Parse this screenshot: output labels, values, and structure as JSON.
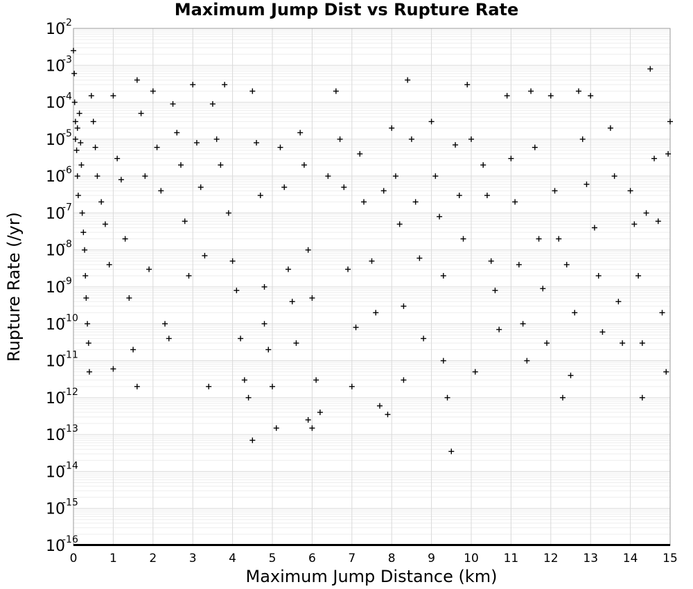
{
  "chart_data": {
    "type": "scatter",
    "title": "Maximum Jump Dist vs Rupture Rate",
    "xlabel": "Maximum Jump Distance (km)",
    "ylabel": "Rupture Rate (/yr)",
    "xlim": [
      0,
      15
    ],
    "ylim": [
      1e-16,
      0.01
    ],
    "y_scale": "log",
    "grid": true,
    "marker": "+",
    "marker_color": "#000000",
    "x_ticks": [
      "0",
      "1",
      "2",
      "3",
      "4",
      "5",
      "6",
      "7",
      "8",
      "9",
      "10",
      "11",
      "12",
      "13",
      "14",
      "15"
    ],
    "y_ticks": [
      {
        "base": "10",
        "exp": "-2"
      },
      {
        "base": "10",
        "exp": "-3"
      },
      {
        "base": "10",
        "exp": "-4"
      },
      {
        "base": "10",
        "exp": "-5"
      },
      {
        "base": "10",
        "exp": "-6"
      },
      {
        "base": "10",
        "exp": "-7"
      },
      {
        "base": "10",
        "exp": "-8"
      },
      {
        "base": "10",
        "exp": "-9"
      },
      {
        "base": "10",
        "exp": "-10"
      },
      {
        "base": "10",
        "exp": "-11"
      },
      {
        "base": "10",
        "exp": "-12"
      },
      {
        "base": "10",
        "exp": "-13"
      },
      {
        "base": "10",
        "exp": "-14"
      },
      {
        "base": "10",
        "exp": "-15"
      },
      {
        "base": "10",
        "exp": "-16"
      }
    ],
    "series": [
      {
        "points": [
          [
            0.0,
            0.0025
          ],
          [
            0.02,
            0.0006
          ],
          [
            0.03,
            0.0001
          ],
          [
            0.05,
            3e-05
          ],
          [
            0.05,
            1e-05
          ],
          [
            0.08,
            5e-06
          ],
          [
            0.1,
            2e-05
          ],
          [
            0.1,
            1e-06
          ],
          [
            0.12,
            3e-07
          ],
          [
            0.15,
            5e-05
          ],
          [
            0.18,
            8e-06
          ],
          [
            0.2,
            2e-06
          ],
          [
            0.22,
            1e-07
          ],
          [
            0.25,
            3e-08
          ],
          [
            0.28,
            1e-08
          ],
          [
            0.3,
            2e-09
          ],
          [
            0.32,
            5e-10
          ],
          [
            0.35,
            1e-10
          ],
          [
            0.38,
            3e-11
          ],
          [
            0.4,
            5e-12
          ],
          [
            0.45,
            0.00015
          ],
          [
            0.5,
            3e-05
          ],
          [
            0.55,
            6e-06
          ],
          [
            0.6,
            1e-06
          ],
          [
            0.7,
            2e-07
          ],
          [
            0.8,
            5e-08
          ],
          [
            0.9,
            4e-09
          ],
          [
            1.0,
            0.00015
          ],
          [
            1.0,
            6e-12
          ],
          [
            1.1,
            3e-06
          ],
          [
            1.2,
            8e-07
          ],
          [
            1.3,
            2e-08
          ],
          [
            1.4,
            5e-10
          ],
          [
            1.5,
            2e-11
          ],
          [
            1.6,
            0.0004
          ],
          [
            1.6,
            2e-12
          ],
          [
            1.7,
            5e-05
          ],
          [
            1.8,
            1e-06
          ],
          [
            1.9,
            3e-09
          ],
          [
            2.0,
            0.0002
          ],
          [
            2.1,
            6e-06
          ],
          [
            2.2,
            4e-07
          ],
          [
            2.3,
            1e-10
          ],
          [
            2.4,
            4e-11
          ],
          [
            2.5,
            9e-05
          ],
          [
            2.6,
            1.5e-05
          ],
          [
            2.7,
            2e-06
          ],
          [
            2.8,
            6e-08
          ],
          [
            2.9,
            2e-09
          ],
          [
            3.0,
            0.0003
          ],
          [
            3.1,
            8e-06
          ],
          [
            3.2,
            5e-07
          ],
          [
            3.3,
            7e-09
          ],
          [
            3.4,
            2e-12
          ],
          [
            3.5,
            9e-05
          ],
          [
            3.6,
            1e-05
          ],
          [
            3.7,
            2e-06
          ],
          [
            3.8,
            0.0003
          ],
          [
            3.9,
            1e-07
          ],
          [
            4.0,
            5e-09
          ],
          [
            4.1,
            8e-10
          ],
          [
            4.2,
            4e-11
          ],
          [
            4.3,
            3e-12
          ],
          [
            4.4,
            1e-12
          ],
          [
            4.5,
            7e-14
          ],
          [
            4.5,
            0.0002
          ],
          [
            4.6,
            8e-06
          ],
          [
            4.7,
            3e-07
          ],
          [
            4.8,
            1e-09
          ],
          [
            4.8,
            1e-10
          ],
          [
            4.9,
            2e-11
          ],
          [
            5.0,
            2e-12
          ],
          [
            5.1,
            1.5e-13
          ],
          [
            5.2,
            6e-06
          ],
          [
            5.3,
            5e-07
          ],
          [
            5.4,
            3e-09
          ],
          [
            5.5,
            4e-10
          ],
          [
            5.6,
            3e-11
          ],
          [
            5.7,
            1.5e-05
          ],
          [
            5.8,
            2e-06
          ],
          [
            5.9,
            1e-08
          ],
          [
            5.9,
            2.5e-13
          ],
          [
            6.0,
            5e-10
          ],
          [
            6.0,
            1.5e-13
          ],
          [
            6.1,
            3e-12
          ],
          [
            6.2,
            4e-13
          ],
          [
            6.4,
            1e-06
          ],
          [
            6.6,
            0.0002
          ],
          [
            6.7,
            1e-05
          ],
          [
            6.8,
            5e-07
          ],
          [
            6.9,
            3e-09
          ],
          [
            7.0,
            2e-12
          ],
          [
            7.1,
            8e-11
          ],
          [
            7.2,
            4e-06
          ],
          [
            7.3,
            2e-07
          ],
          [
            7.5,
            5e-09
          ],
          [
            7.6,
            2e-10
          ],
          [
            7.7,
            6e-13
          ],
          [
            7.8,
            4e-07
          ],
          [
            7.9,
            3.5e-13
          ],
          [
            8.0,
            2e-05
          ],
          [
            8.1,
            1e-06
          ],
          [
            8.2,
            5e-08
          ],
          [
            8.3,
            3e-10
          ],
          [
            8.3,
            3e-12
          ],
          [
            8.4,
            0.0004
          ],
          [
            8.5,
            1e-05
          ],
          [
            8.6,
            2e-07
          ],
          [
            8.7,
            6e-09
          ],
          [
            8.8,
            4e-11
          ],
          [
            9.0,
            3e-05
          ],
          [
            9.1,
            1e-06
          ],
          [
            9.2,
            8e-08
          ],
          [
            9.3,
            2e-09
          ],
          [
            9.3,
            1e-11
          ],
          [
            9.4,
            1e-12
          ],
          [
            9.5,
            3.5e-14
          ],
          [
            9.6,
            7e-06
          ],
          [
            9.7,
            3e-07
          ],
          [
            9.8,
            2e-08
          ],
          [
            9.9,
            0.0003
          ],
          [
            10.0,
            1e-05
          ],
          [
            10.1,
            5e-12
          ],
          [
            10.3,
            2e-06
          ],
          [
            10.4,
            3e-07
          ],
          [
            10.5,
            5e-09
          ],
          [
            10.6,
            8e-10
          ],
          [
            10.7,
            7e-11
          ],
          [
            10.9,
            0.00015
          ],
          [
            11.0,
            3e-06
          ],
          [
            11.1,
            2e-07
          ],
          [
            11.2,
            4e-09
          ],
          [
            11.3,
            1e-10
          ],
          [
            11.4,
            1e-11
          ],
          [
            11.5,
            0.0002
          ],
          [
            11.6,
            6e-06
          ],
          [
            11.7,
            2e-08
          ],
          [
            11.8,
            9e-10
          ],
          [
            11.9,
            3e-11
          ],
          [
            12.0,
            0.00015
          ],
          [
            12.1,
            4e-07
          ],
          [
            12.2,
            2e-08
          ],
          [
            12.3,
            1e-12
          ],
          [
            12.4,
            4e-09
          ],
          [
            12.5,
            4e-12
          ],
          [
            12.6,
            2e-10
          ],
          [
            12.7,
            0.0002
          ],
          [
            12.8,
            1e-05
          ],
          [
            12.9,
            6e-07
          ],
          [
            13.0,
            0.00015
          ],
          [
            13.1,
            4e-08
          ],
          [
            13.2,
            2e-09
          ],
          [
            13.3,
            6e-11
          ],
          [
            13.5,
            2e-05
          ],
          [
            13.6,
            1e-06
          ],
          [
            13.7,
            4e-10
          ],
          [
            13.8,
            3e-11
          ],
          [
            14.0,
            4e-07
          ],
          [
            14.1,
            5e-08
          ],
          [
            14.2,
            2e-09
          ],
          [
            14.3,
            3e-11
          ],
          [
            14.3,
            1e-12
          ],
          [
            14.4,
            1e-07
          ],
          [
            14.5,
            0.0008
          ],
          [
            14.6,
            3e-06
          ],
          [
            14.7,
            6e-08
          ],
          [
            14.8,
            2e-10
          ],
          [
            14.9,
            5e-12
          ],
          [
            15.0,
            3e-05
          ],
          [
            14.95,
            4e-06
          ]
        ]
      }
    ],
    "floor_band": {
      "y": 1e-16,
      "x_range": [
        0,
        15
      ]
    }
  }
}
